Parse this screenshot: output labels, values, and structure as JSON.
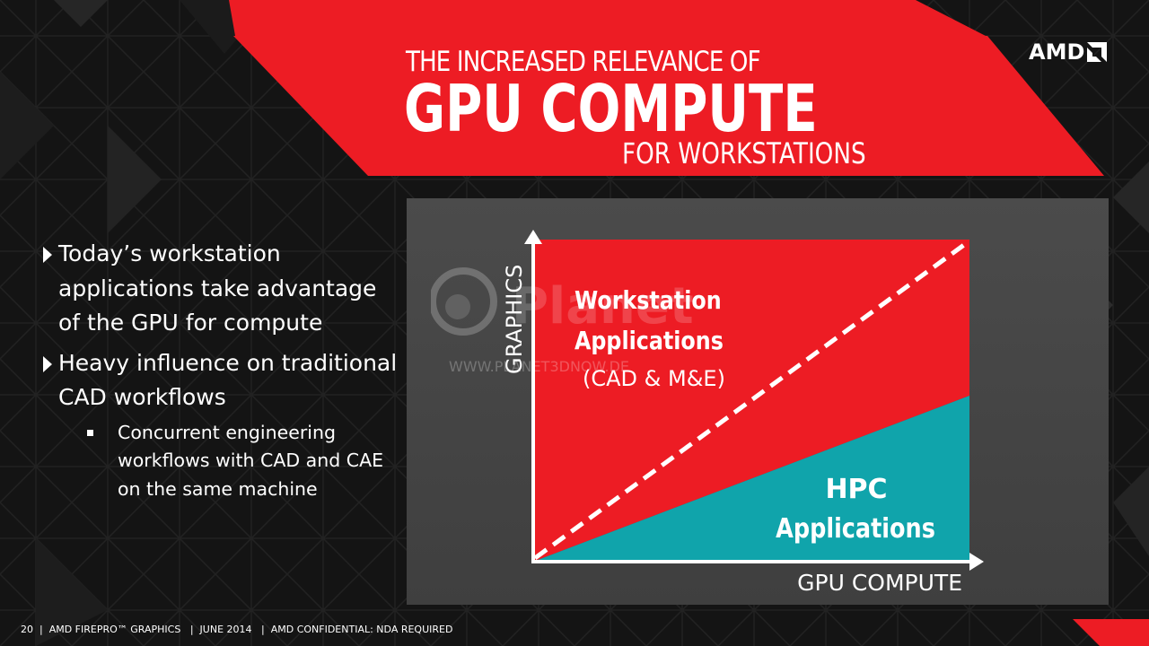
{
  "slide": {
    "title_line1": "THE INCREASED RELEVANCE OF",
    "title_line2": "GPU COMPUTE",
    "title_line3": "FOR WORKSTATIONS",
    "logo_text": "AMD",
    "colors": {
      "accent_red": "#ed1c24",
      "teal": "#10a4ab",
      "background": "#151515",
      "panel": "#454545"
    }
  },
  "bullets": [
    {
      "text": "Today’s workstation applications take advantage of the GPU for compute",
      "level": 1
    },
    {
      "text": "Heavy influence on traditional CAD workflows",
      "level": 1
    },
    {
      "text": "Concurrent engineering workflows with CAD and CAE on the same machine",
      "level": 2
    }
  ],
  "diagram": {
    "y_axis_label": "GRAPHICS",
    "x_axis_label": "GPU COMPUTE",
    "upper_region": {
      "line1": "Workstation",
      "line2": "Applications",
      "line3": "(CAD & M&E)"
    },
    "lower_region": {
      "line1": "HPC",
      "line2": "Applications"
    }
  },
  "watermark": {
    "brand": "Planet",
    "url": "WWW.PLANET3DNOW.DE"
  },
  "footer": {
    "page": "20",
    "product": "AMD FIREPRO™ GRAPHICS",
    "date": "JUNE 2014",
    "confidential": "AMD CONFIDENTIAL: NDA REQUIRED"
  }
}
